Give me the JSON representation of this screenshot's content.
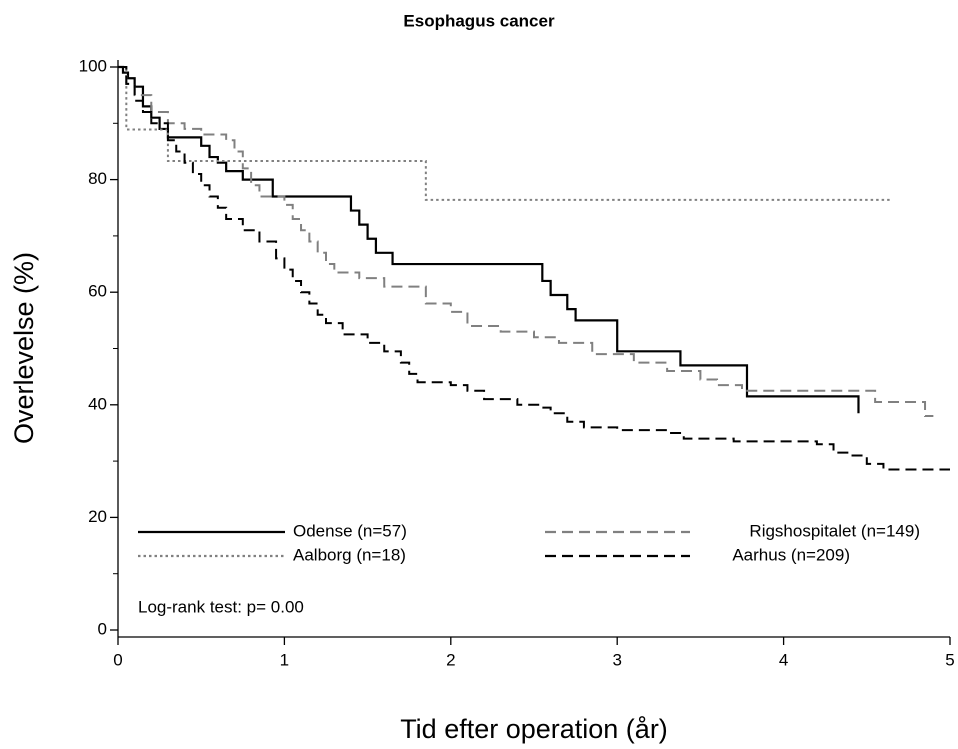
{
  "chart_data": {
    "type": "line",
    "step": true,
    "title": "Esophagus cancer",
    "xlabel": "Tid efter operation (år)",
    "ylabel": "Overlevelse (%)",
    "xlim": [
      0,
      5
    ],
    "xticks": [
      0,
      1,
      2,
      3,
      4,
      5
    ],
    "ylim": [
      0,
      100
    ],
    "yticks": [
      0,
      20,
      40,
      60,
      80,
      100
    ],
    "yminorticks": [
      10,
      30,
      50,
      70,
      90
    ],
    "annotation": "Log-rank test: p= 0.00",
    "series": [
      {
        "name": "Odense (n=57)",
        "color": "#000000",
        "linestyle": "solid",
        "x": [
          0,
          0.03,
          0.06,
          0.1,
          0.15,
          0.2,
          0.25,
          0.3,
          0.5,
          0.55,
          0.6,
          0.65,
          0.75,
          0.93,
          1.4,
          1.45,
          1.5,
          1.55,
          1.65,
          2.55,
          2.6,
          2.7,
          2.75,
          3.0,
          3.38,
          3.78,
          4.45
        ],
        "values": [
          100,
          99,
          98,
          96.5,
          93,
          91,
          89,
          87.5,
          86,
          84,
          83,
          81.5,
          80,
          77,
          74.5,
          72,
          69.5,
          67,
          65,
          62,
          59.5,
          57,
          55,
          49.5,
          47,
          41.5,
          38.5
        ]
      },
      {
        "name": "Rigshospitalet (n=149)",
        "color": "#808080",
        "linestyle": "dashed",
        "x": [
          0,
          0.05,
          0.1,
          0.2,
          0.3,
          0.4,
          0.5,
          0.65,
          0.7,
          0.75,
          0.8,
          0.85,
          1.0,
          1.05,
          1.1,
          1.15,
          1.2,
          1.25,
          1.3,
          1.45,
          1.6,
          1.85,
          2.0,
          2.1,
          2.3,
          2.5,
          2.65,
          2.85,
          3.1,
          3.3,
          3.5,
          3.6,
          3.75,
          4.55,
          4.85,
          4.9
        ],
        "values": [
          100,
          97,
          95,
          92,
          90,
          89,
          88,
          87,
          85,
          82,
          79,
          77,
          75.5,
          73,
          71,
          69,
          67,
          65,
          63.5,
          62.5,
          61,
          58,
          56.5,
          54,
          53,
          52,
          51,
          49,
          47.5,
          46,
          44.5,
          43.5,
          42.5,
          40.5,
          38,
          38
        ]
      },
      {
        "name": "Aalborg (n=18)",
        "color": "#808080",
        "linestyle": "dotted",
        "x": [
          0,
          0.05,
          0.3,
          1.85,
          4.65
        ],
        "values": [
          100,
          88.9,
          83.3,
          76.4,
          76.4
        ]
      },
      {
        "name": "Aarhus (n=209)",
        "color": "#000000",
        "linestyle": "dashed",
        "x": [
          0,
          0.05,
          0.1,
          0.15,
          0.2,
          0.3,
          0.35,
          0.4,
          0.45,
          0.5,
          0.55,
          0.6,
          0.65,
          0.75,
          0.85,
          0.95,
          1.0,
          1.05,
          1.1,
          1.15,
          1.2,
          1.25,
          1.35,
          1.5,
          1.6,
          1.7,
          1.75,
          1.8,
          2.0,
          2.1,
          2.2,
          2.4,
          2.55,
          2.6,
          2.7,
          2.8,
          3.0,
          3.3,
          3.4,
          3.7,
          4.2,
          4.3,
          4.4,
          4.5,
          4.6,
          5.0
        ],
        "values": [
          100,
          97,
          94,
          92,
          90,
          87,
          85,
          83,
          81,
          79,
          77,
          75,
          73,
          71,
          69,
          66,
          64,
          62,
          60,
          58,
          56,
          54.5,
          52.5,
          51,
          49.5,
          47.5,
          45.5,
          44,
          43.5,
          42.5,
          41,
          40,
          39.5,
          38.5,
          37,
          36,
          35.5,
          35,
          34,
          33.5,
          33,
          31.5,
          31,
          29.5,
          28.5,
          28.5
        ]
      }
    ]
  }
}
